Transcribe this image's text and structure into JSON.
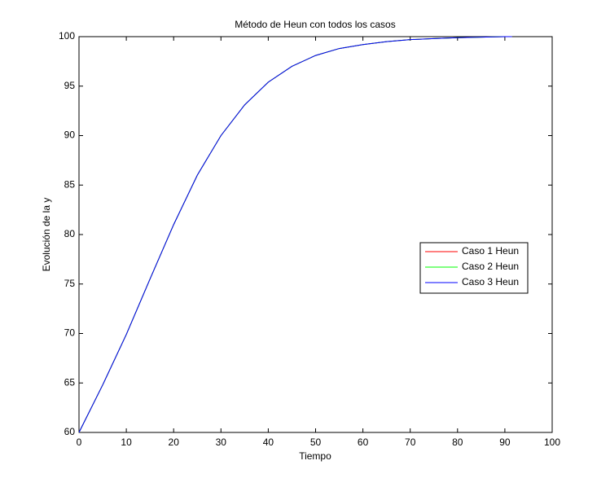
{
  "chart_data": {
    "type": "line",
    "title": "Método de Heun con todos los casos",
    "xlabel": "Tiempo",
    "ylabel": "Evolución de la y",
    "x": [
      0,
      5,
      10,
      15,
      20,
      25,
      30,
      35,
      40,
      45,
      50,
      55,
      60,
      65,
      70,
      75,
      80,
      85,
      90,
      91.5
    ],
    "series": [
      {
        "name": "Caso 1 Heun",
        "color": "#ff0000",
        "values": [
          60,
          64.8,
          69.9,
          75.5,
          81.0,
          86.0,
          90.0,
          93.1,
          95.4,
          97.0,
          98.1,
          98.8,
          99.2,
          99.5,
          99.7,
          99.8,
          99.9,
          99.95,
          100,
          100
        ]
      },
      {
        "name": "Caso 2 Heun",
        "color": "#00ff00",
        "values": [
          60,
          64.8,
          69.9,
          75.5,
          81.0,
          86.0,
          90.0,
          93.1,
          95.4,
          97.0,
          98.1,
          98.8,
          99.2,
          99.5,
          99.7,
          99.8,
          99.9,
          99.95,
          100,
          100
        ]
      },
      {
        "name": "Caso 3 Heun",
        "color": "#0000ff",
        "values": [
          60,
          64.8,
          69.9,
          75.5,
          81.0,
          86.0,
          90.0,
          93.1,
          95.4,
          97.0,
          98.1,
          98.8,
          99.2,
          99.5,
          99.7,
          99.8,
          99.9,
          99.95,
          100,
          100
        ]
      }
    ],
    "xlim": [
      0,
      100
    ],
    "xticks": [
      0,
      10,
      20,
      30,
      40,
      50,
      60,
      70,
      80,
      90,
      100
    ],
    "ylim": [
      60,
      100
    ],
    "yticks": [
      60,
      65,
      70,
      75,
      80,
      85,
      90,
      95,
      100
    ],
    "grid": false,
    "legend": "east"
  }
}
